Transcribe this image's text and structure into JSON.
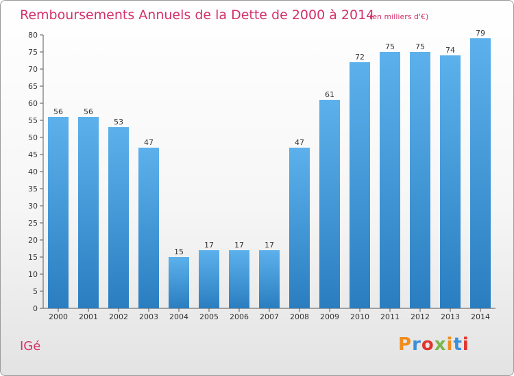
{
  "chart_data": {
    "type": "bar",
    "title": "Remboursements Annuels de la Dette de 2000 à 2014",
    "subtitle": "(en milliers d'€)",
    "categories": [
      "2000",
      "2001",
      "2002",
      "2003",
      "2004",
      "2005",
      "2006",
      "2007",
      "2008",
      "2009",
      "2010",
      "2011",
      "2012",
      "2013",
      "2014"
    ],
    "values": [
      56,
      56,
      53,
      47,
      15,
      17,
      17,
      17,
      47,
      61,
      72,
      75,
      75,
      74,
      79
    ],
    "ylim": [
      0,
      80
    ],
    "yticks": [
      0,
      5,
      10,
      15,
      20,
      25,
      30,
      35,
      40,
      45,
      50,
      55,
      60,
      65,
      70,
      75,
      80
    ],
    "grid": false,
    "bar_color": "#3f95db"
  },
  "footer": {
    "place": "IGé",
    "brand": "Proxiti"
  },
  "colors": {
    "title": "#d4306b",
    "brand_letters": [
      "#f28c1e",
      "#3a8fd8",
      "#e2342e",
      "#7ab648",
      "#f28c1e",
      "#3a8fd8",
      "#e2342e"
    ]
  }
}
